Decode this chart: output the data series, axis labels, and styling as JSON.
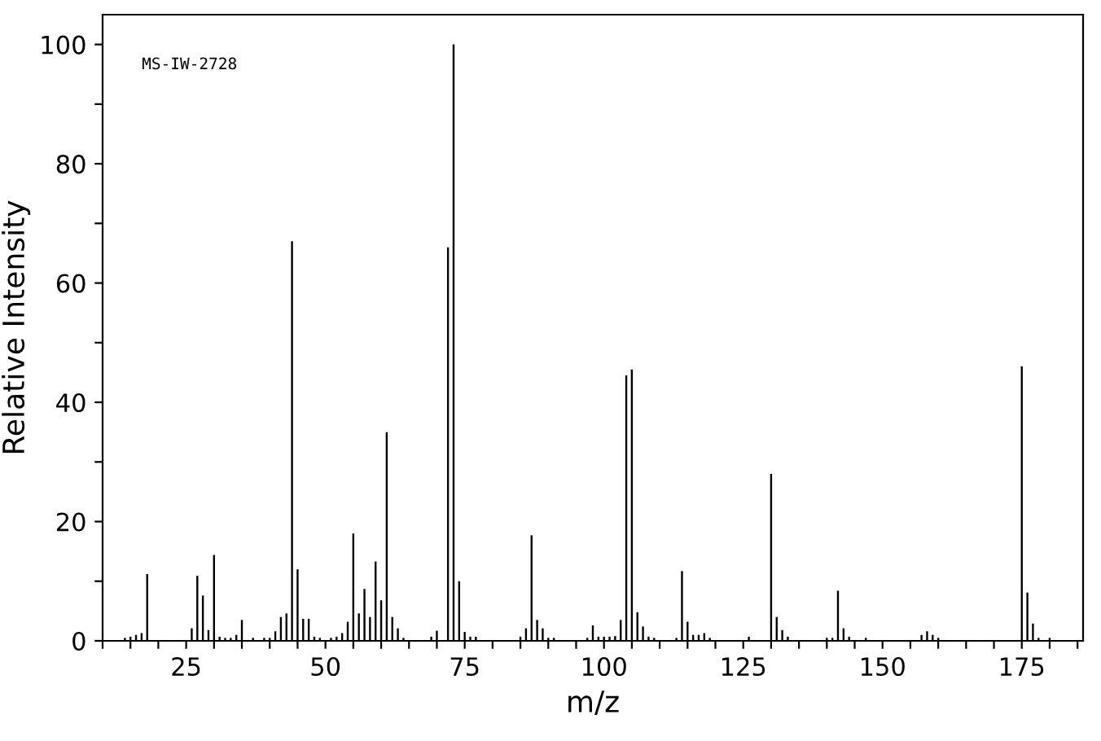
{
  "chart_data": {
    "type": "bar",
    "xlabel": "m/z",
    "ylabel": "Relative Intensity",
    "annotations": [
      "MS-IW-2728"
    ],
    "x": [
      14,
      15,
      16,
      17,
      18,
      26,
      27,
      28,
      29,
      30,
      31,
      32,
      33,
      34,
      35,
      37,
      39,
      40,
      41,
      42,
      43,
      44,
      45,
      46,
      47,
      48,
      49,
      51,
      52,
      53,
      54,
      55,
      56,
      57,
      58,
      59,
      60,
      61,
      62,
      63,
      64,
      69,
      70,
      72,
      73,
      74,
      75,
      76,
      77,
      85,
      86,
      87,
      88,
      89,
      90,
      91,
      97,
      98,
      99,
      100,
      101,
      102,
      103,
      104,
      105,
      106,
      107,
      108,
      109,
      113,
      114,
      115,
      116,
      117,
      118,
      119,
      126,
      130,
      131,
      132,
      133,
      140,
      141,
      142,
      143,
      144,
      147,
      157,
      158,
      159,
      160,
      175,
      176,
      177,
      178,
      180
    ],
    "values": [
      0.5,
      0.7,
      1,
      1.3,
      11.2,
      2.1,
      10.9,
      7.6,
      1.8,
      14.4,
      0.7,
      0.5,
      0.5,
      1,
      3.5,
      0.5,
      0.5,
      0.5,
      1.6,
      4,
      4.6,
      67,
      12,
      3.7,
      3.7,
      0.7,
      0.5,
      0.5,
      0.7,
      1.3,
      3.2,
      18,
      4.6,
      8.7,
      4,
      13.3,
      6.8,
      35,
      4,
      2.1,
      0.5,
      0.7,
      1.7,
      66,
      100,
      10,
      1.5,
      0.7,
      0.7,
      0.7,
      2.1,
      17.7,
      3.5,
      2.1,
      0.5,
      0.5,
      0.5,
      2.6,
      0.7,
      0.7,
      0.7,
      0.8,
      3.5,
      44.5,
      45.5,
      4.8,
      2.4,
      0.7,
      0.5,
      0.5,
      11.7,
      3.2,
      1,
      1,
      1.3,
      0.5,
      0.7,
      28,
      4,
      1.8,
      0.7,
      0.5,
      0.5,
      8.4,
      2.1,
      0.7,
      0.5,
      1,
      1.6,
      1,
      0.5,
      46,
      8.1,
      2.9,
      0.5,
      0.5
    ],
    "color": "#000000",
    "xlim": [
      10,
      186
    ],
    "ylim": [
      0,
      105
    ],
    "xticks": [
      {
        "value": 10,
        "label": null
      },
      {
        "value": 15,
        "label": null
      },
      {
        "value": 20,
        "label": null
      },
      25,
      {
        "value": 30,
        "label": null
      },
      {
        "value": 35,
        "label": null
      },
      {
        "value": 40,
        "label": null
      },
      {
        "value": 45,
        "label": null
      },
      50,
      {
        "value": 55,
        "label": null
      },
      {
        "value": 60,
        "label": null
      },
      {
        "value": 65,
        "label": null
      },
      {
        "value": 70,
        "label": null
      },
      75,
      {
        "value": 80,
        "label": null
      },
      {
        "value": 85,
        "label": null
      },
      {
        "value": 90,
        "label": null
      },
      {
        "value": 95,
        "label": null
      },
      100,
      {
        "value": 105,
        "label": null
      },
      {
        "value": 110,
        "label": null
      },
      {
        "value": 115,
        "label": null
      },
      {
        "value": 120,
        "label": null
      },
      125,
      {
        "value": 130,
        "label": null
      },
      {
        "value": 135,
        "label": null
      },
      {
        "value": 140,
        "label": null
      },
      {
        "value": 145,
        "label": null
      },
      150,
      {
        "value": 155,
        "label": null
      },
      {
        "value": 160,
        "label": null
      },
      {
        "value": 165,
        "label": null
      },
      {
        "value": 170,
        "label": null
      },
      175,
      {
        "value": 180,
        "label": null
      },
      {
        "value": 185,
        "label": null
      }
    ],
    "yticks": [
      0,
      {
        "value": 10,
        "label": null
      },
      20,
      {
        "value": 30,
        "label": null
      },
      40,
      {
        "value": 50,
        "label": null
      },
      60,
      {
        "value": 70,
        "label": null
      },
      80,
      {
        "value": 90,
        "label": null
      },
      100
    ],
    "grid": false,
    "legend": false
  }
}
